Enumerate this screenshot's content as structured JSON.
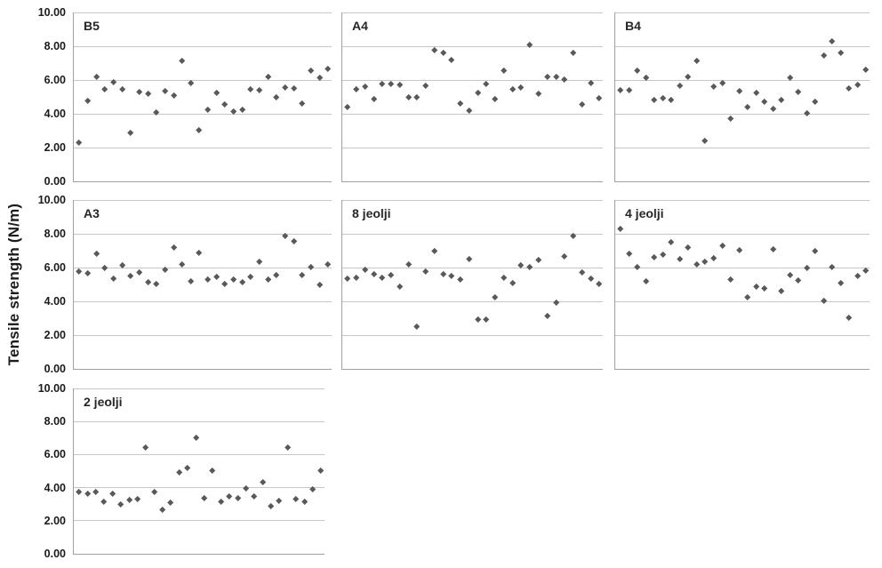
{
  "figure": {
    "ylabel": "Tensile strength (N/m)",
    "yticks": [
      0,
      2,
      4,
      6,
      8,
      10
    ],
    "ytick_labels": [
      "0.00",
      "2.00",
      "4.00",
      "6.00",
      "8.00",
      "10.00"
    ],
    "colors": {
      "marker": "#595959",
      "gridline": "#c6c6c6",
      "axis": "#a0a0a0",
      "text": "#1a1a1a"
    }
  },
  "chart_data": [
    {
      "type": "scatter",
      "title": "B5",
      "ylim": [
        0,
        10
      ],
      "grid": true,
      "values": [
        2.3,
        4.75,
        6.2,
        5.45,
        5.85,
        5.45,
        2.85,
        5.3,
        5.15,
        4.05,
        5.35,
        5.05,
        7.1,
        5.8,
        3.0,
        4.25,
        5.25,
        4.55,
        4.1,
        4.25,
        5.45,
        5.4,
        6.15,
        4.95,
        5.55,
        5.5,
        4.6,
        6.55,
        6.1,
        6.65
      ]
    },
    {
      "type": "scatter",
      "title": "A4",
      "ylim": [
        0,
        10
      ],
      "grid": true,
      "values": [
        4.4,
        5.45,
        5.6,
        4.85,
        5.75,
        5.75,
        5.7,
        4.95,
        4.95,
        5.65,
        7.75,
        7.6,
        7.2,
        4.6,
        4.2,
        5.25,
        5.75,
        4.85,
        6.55,
        5.45,
        5.55,
        8.05,
        5.15,
        6.15,
        6.2,
        6.0,
        7.6,
        4.55,
        5.8,
        4.9
      ]
    },
    {
      "type": "scatter",
      "title": "B4",
      "ylim": [
        0,
        10
      ],
      "grid": true,
      "values": [
        5.4,
        5.4,
        6.55,
        6.1,
        4.8,
        4.9,
        4.8,
        5.65,
        6.15,
        7.1,
        2.4,
        5.6,
        5.8,
        3.7,
        5.35,
        4.4,
        5.25,
        4.7,
        4.3,
        4.8,
        6.1,
        5.3,
        4.0,
        4.7,
        7.45,
        8.3,
        7.6,
        5.5,
        5.7,
        6.6
      ]
    },
    {
      "type": "scatter",
      "title": "A3",
      "ylim": [
        0,
        10
      ],
      "grid": true,
      "values": [
        5.75,
        5.65,
        6.8,
        5.95,
        5.35,
        6.1,
        5.5,
        5.7,
        5.1,
        5.0,
        5.85,
        7.15,
        6.2,
        5.15,
        6.85,
        5.3,
        5.45,
        5.0,
        5.3,
        5.1,
        5.45,
        6.35,
        5.3,
        5.55,
        7.85,
        7.55,
        5.55,
        6.0,
        4.95,
        6.15
      ]
    },
    {
      "type": "scatter",
      "title": "8 jeolji",
      "ylim": [
        0,
        10
      ],
      "grid": true,
      "values": [
        5.35,
        5.4,
        5.85,
        5.6,
        5.4,
        5.55,
        4.85,
        6.15,
        2.5,
        5.75,
        6.95,
        5.6,
        5.5,
        5.3,
        6.5,
        2.9,
        2.9,
        4.25,
        5.4,
        5.05,
        6.1,
        6.0,
        6.45,
        3.1,
        3.9,
        6.65,
        7.85,
        5.7,
        5.35,
        5.0
      ]
    },
    {
      "type": "scatter",
      "title": "4 jeolji",
      "ylim": [
        0,
        10
      ],
      "grid": true,
      "values": [
        8.3,
        6.8,
        6.0,
        5.2,
        6.6,
        6.75,
        7.5,
        6.5,
        7.2,
        6.2,
        6.35,
        6.55,
        7.3,
        5.3,
        7.0,
        4.25,
        4.85,
        4.75,
        7.05,
        4.6,
        5.55,
        5.25,
        5.95,
        6.95,
        4.0,
        6.0,
        5.05,
        3.0,
        5.5,
        5.8
      ]
    },
    {
      "type": "scatter",
      "title": "2 jeolji",
      "ylim": [
        0,
        10
      ],
      "grid": true,
      "values": [
        3.7,
        3.6,
        3.7,
        3.15,
        3.6,
        3.0,
        3.25,
        3.3,
        6.4,
        3.7,
        2.65,
        3.1,
        4.9,
        5.2,
        7.0,
        3.35,
        5.0,
        3.15,
        3.45,
        3.35,
        3.95,
        3.45,
        4.3,
        2.85,
        3.2,
        6.4,
        3.3,
        3.15,
        3.9,
        5.0
      ]
    }
  ]
}
